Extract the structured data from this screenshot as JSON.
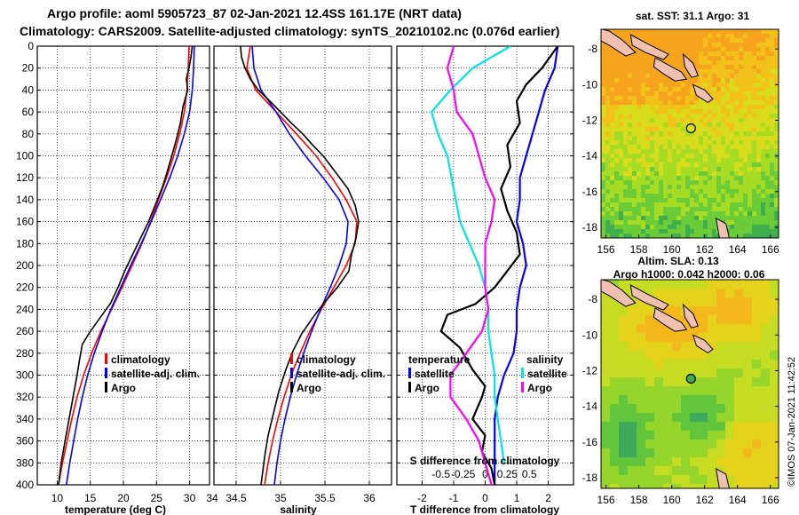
{
  "header": {
    "line1": "Argo profile: aoml 5905723_87 02-Jan-2021 12.4SS 161.17E (NRT data)",
    "line2": "Climatology: CARS2009. Satellite-adjusted climatology: synTS_20210102.nc (0.076d earlier)"
  },
  "watermark": "©IMOS 07-Jan-2021 11:42:52",
  "colors": {
    "climatology": "#ff0000",
    "satellite": "#0000ff",
    "argo": "#000000",
    "t_satellite": "#0000ff",
    "t_argo": "#000000",
    "s_satellite": "#00e5e5",
    "s_argo": "#ff00ff"
  },
  "chart_data": [
    {
      "type": "line",
      "name": "temperature-profile",
      "xlabel": "temperature (deg C)",
      "ylabel": "",
      "xlim": [
        7,
        33
      ],
      "ylim": [
        400,
        0
      ],
      "xticks": [
        10,
        15,
        20,
        25,
        30
      ],
      "yticks": [
        0,
        20,
        40,
        60,
        80,
        100,
        120,
        140,
        160,
        180,
        200,
        220,
        240,
        260,
        280,
        300,
        320,
        340,
        360,
        380,
        400
      ],
      "legend": [
        "climatology",
        "satellite-adj. clim.",
        "Argo"
      ],
      "series": [
        {
          "name": "climatology",
          "color": "#ff0000",
          "points": [
            [
              29.9,
              0
            ],
            [
              29.8,
              20
            ],
            [
              29.6,
              40
            ],
            [
              29.2,
              60
            ],
            [
              28.5,
              80
            ],
            [
              27.6,
              100
            ],
            [
              26.5,
              120
            ],
            [
              25.3,
              140
            ],
            [
              24.1,
              160
            ],
            [
              22.8,
              180
            ],
            [
              21.3,
              200
            ],
            [
              19.8,
              220
            ],
            [
              18.2,
              240
            ],
            [
              16.6,
              260
            ],
            [
              15.2,
              280
            ],
            [
              14.0,
              300
            ],
            [
              13.0,
              320
            ],
            [
              12.2,
              340
            ],
            [
              11.5,
              360
            ],
            [
              10.8,
              380
            ],
            [
              10.2,
              400
            ]
          ]
        },
        {
          "name": "satellite-adj. clim.",
          "color": "#0000ff",
          "points": [
            [
              30.7,
              0
            ],
            [
              30.6,
              20
            ],
            [
              30.4,
              40
            ],
            [
              30.0,
              60
            ],
            [
              29.2,
              80
            ],
            [
              28.2,
              100
            ],
            [
              27.0,
              120
            ],
            [
              25.6,
              140
            ],
            [
              24.2,
              160
            ],
            [
              22.7,
              180
            ],
            [
              21.1,
              200
            ],
            [
              19.6,
              220
            ],
            [
              18.1,
              240
            ],
            [
              16.8,
              260
            ],
            [
              15.6,
              280
            ],
            [
              14.6,
              300
            ],
            [
              13.8,
              320
            ],
            [
              13.1,
              340
            ],
            [
              12.5,
              360
            ],
            [
              11.9,
              380
            ],
            [
              11.4,
              400
            ]
          ]
        },
        {
          "name": "Argo",
          "color": "#000000",
          "points": [
            [
              30.4,
              0
            ],
            [
              30.2,
              10
            ],
            [
              29.9,
              20
            ],
            [
              29.5,
              30
            ],
            [
              29.7,
              40
            ],
            [
              29.0,
              55
            ],
            [
              28.6,
              70
            ],
            [
              28.0,
              85
            ],
            [
              27.3,
              100
            ],
            [
              26.6,
              115
            ],
            [
              25.8,
              130
            ],
            [
              24.8,
              145
            ],
            [
              23.8,
              160
            ],
            [
              22.6,
              175
            ],
            [
              21.4,
              190
            ],
            [
              20.2,
              205
            ],
            [
              19.2,
              220
            ],
            [
              18.0,
              235
            ],
            [
              16.2,
              250
            ],
            [
              14.8,
              262
            ],
            [
              13.8,
              272
            ],
            [
              13.4,
              285
            ],
            [
              13.0,
              300
            ],
            [
              12.4,
              320
            ],
            [
              11.8,
              340
            ],
            [
              11.2,
              360
            ],
            [
              10.6,
              380
            ],
            [
              10.2,
              400
            ]
          ]
        }
      ]
    },
    {
      "type": "line",
      "name": "salinity-profile",
      "xlabel": "salinity",
      "xlim": [
        34.25,
        36.25
      ],
      "ylim": [
        400,
        0
      ],
      "xticks": [
        34.5,
        35,
        35.5,
        36
      ],
      "extra_left_tick": "34",
      "legend": [
        "climatology",
        "satellite-adj. clim.",
        "Argo"
      ],
      "series": [
        {
          "name": "climatology",
          "color": "#ff0000",
          "points": [
            [
              34.66,
              0
            ],
            [
              34.62,
              20
            ],
            [
              34.72,
              40
            ],
            [
              34.95,
              60
            ],
            [
              35.18,
              80
            ],
            [
              35.4,
              100
            ],
            [
              35.58,
              120
            ],
            [
              35.74,
              140
            ],
            [
              35.86,
              160
            ],
            [
              35.84,
              180
            ],
            [
              35.74,
              200
            ],
            [
              35.6,
              220
            ],
            [
              35.46,
              240
            ],
            [
              35.33,
              260
            ],
            [
              35.22,
              280
            ],
            [
              35.12,
              300
            ],
            [
              35.04,
              320
            ],
            [
              34.97,
              340
            ],
            [
              34.91,
              360
            ],
            [
              34.86,
              380
            ],
            [
              34.82,
              400
            ]
          ]
        },
        {
          "name": "satellite-adj. clim.",
          "color": "#0000ff",
          "points": [
            [
              34.68,
              0
            ],
            [
              34.7,
              20
            ],
            [
              34.78,
              40
            ],
            [
              34.95,
              60
            ],
            [
              35.1,
              80
            ],
            [
              35.28,
              100
            ],
            [
              35.48,
              120
            ],
            [
              35.66,
              140
            ],
            [
              35.76,
              160
            ],
            [
              35.74,
              180
            ],
            [
              35.66,
              200
            ],
            [
              35.56,
              220
            ],
            [
              35.45,
              240
            ],
            [
              35.35,
              260
            ],
            [
              35.26,
              280
            ],
            [
              35.18,
              300
            ],
            [
              35.11,
              320
            ],
            [
              35.05,
              340
            ],
            [
              35.0,
              360
            ],
            [
              34.96,
              380
            ],
            [
              34.93,
              400
            ]
          ]
        },
        {
          "name": "Argo",
          "color": "#000000",
          "points": [
            [
              34.55,
              0
            ],
            [
              34.56,
              10
            ],
            [
              34.6,
              20
            ],
            [
              34.66,
              30
            ],
            [
              34.75,
              40
            ],
            [
              34.88,
              50
            ],
            [
              35.0,
              60
            ],
            [
              35.12,
              70
            ],
            [
              35.25,
              80
            ],
            [
              35.36,
              90
            ],
            [
              35.48,
              100
            ],
            [
              35.62,
              115
            ],
            [
              35.76,
              130
            ],
            [
              35.84,
              145
            ],
            [
              35.88,
              160
            ],
            [
              35.85,
              175
            ],
            [
              35.8,
              190
            ],
            [
              35.77,
              205
            ],
            [
              35.64,
              220
            ],
            [
              35.48,
              235
            ],
            [
              35.36,
              248
            ],
            [
              35.24,
              262
            ],
            [
              35.14,
              278
            ],
            [
              35.06,
              295
            ],
            [
              34.98,
              315
            ],
            [
              34.92,
              335
            ],
            [
              34.86,
              355
            ],
            [
              34.82,
              375
            ],
            [
              34.78,
              400
            ]
          ]
        }
      ]
    },
    {
      "type": "line",
      "name": "difference-profile",
      "xlabel": "T difference from climatology",
      "top_xlabel": "S difference from climatology",
      "xlim": [
        -2.8,
        2.8
      ],
      "ylim": [
        400,
        0
      ],
      "xticks": [
        -2,
        -1,
        0,
        1,
        2
      ],
      "top_xticks": [
        "-0.5",
        "-0.25",
        "0",
        "0.25",
        "0.5"
      ],
      "legend_temperature_title": "temperature",
      "legend_salinity_title": "salinity",
      "legend_temperature": [
        "satellite",
        "Argo"
      ],
      "legend_salinity": [
        "satellite",
        "Argo"
      ],
      "series": [
        {
          "name": "T satellite",
          "color": "#0000ff",
          "points": [
            [
              2.3,
              0
            ],
            [
              2.2,
              20
            ],
            [
              1.9,
              40
            ],
            [
              1.7,
              60
            ],
            [
              1.5,
              80
            ],
            [
              1.3,
              100
            ],
            [
              1.1,
              120
            ],
            [
              1.1,
              140
            ],
            [
              1.0,
              160
            ],
            [
              1.2,
              180
            ],
            [
              1.3,
              200
            ],
            [
              1.1,
              220
            ],
            [
              1.0,
              240
            ],
            [
              1.0,
              260
            ],
            [
              0.9,
              280
            ],
            [
              0.6,
              300
            ],
            [
              0.4,
              320
            ],
            [
              0.3,
              340
            ],
            [
              0.3,
              360
            ],
            [
              0.3,
              380
            ],
            [
              0.3,
              400
            ]
          ]
        },
        {
          "name": "T Argo",
          "color": "#000000",
          "points": [
            [
              2.3,
              0
            ],
            [
              1.8,
              20
            ],
            [
              1.3,
              35
            ],
            [
              1.0,
              50
            ],
            [
              1.1,
              70
            ],
            [
              0.7,
              90
            ],
            [
              0.8,
              110
            ],
            [
              0.5,
              130
            ],
            [
              0.7,
              150
            ],
            [
              1.0,
              170
            ],
            [
              1.1,
              190
            ],
            [
              0.7,
              205
            ],
            [
              0.3,
              220
            ],
            [
              -0.3,
              235
            ],
            [
              -1.2,
              245
            ],
            [
              -1.4,
              260
            ],
            [
              -0.8,
              275
            ],
            [
              -0.4,
              295
            ],
            [
              0.0,
              310
            ],
            [
              -0.1,
              320
            ],
            [
              -0.4,
              340
            ],
            [
              0.0,
              355
            ],
            [
              -0.1,
              370
            ],
            [
              0.2,
              385
            ],
            [
              0.3,
              400
            ]
          ]
        },
        {
          "name": "S satellite",
          "color": "#00e5e5",
          "points": [
            [
              0.8,
              0
            ],
            [
              -0.4,
              20
            ],
            [
              -1.1,
              40
            ],
            [
              -1.7,
              60
            ],
            [
              -1.5,
              80
            ],
            [
              -1.2,
              100
            ],
            [
              -1.0,
              130
            ],
            [
              -0.8,
              160
            ],
            [
              -0.5,
              180
            ],
            [
              -0.2,
              200
            ],
            [
              0.0,
              220
            ],
            [
              0.1,
              240
            ],
            [
              0.1,
              260
            ],
            [
              0.2,
              280
            ],
            [
              0.3,
              300
            ],
            [
              0.3,
              320
            ],
            [
              0.4,
              340
            ],
            [
              0.5,
              360
            ],
            [
              0.6,
              380
            ]
          ]
        },
        {
          "name": "S Argo",
          "color": "#ff00ff",
          "points": [
            [
              -1.0,
              0
            ],
            [
              -1.2,
              20
            ],
            [
              -1.0,
              40
            ],
            [
              -0.9,
              60
            ],
            [
              -0.4,
              80
            ],
            [
              -0.2,
              100
            ],
            [
              0.0,
              120
            ],
            [
              0.3,
              140
            ],
            [
              0.2,
              160
            ],
            [
              0.0,
              180
            ],
            [
              0.0,
              200
            ],
            [
              0.0,
              220
            ],
            [
              0.1,
              240
            ],
            [
              -0.1,
              260
            ],
            [
              -0.6,
              280
            ],
            [
              -1.1,
              300
            ],
            [
              -1.1,
              320
            ],
            [
              -0.6,
              340
            ],
            [
              -0.2,
              360
            ],
            [
              0.0,
              380
            ],
            [
              0.2,
              400
            ]
          ]
        }
      ]
    },
    {
      "type": "heatmap",
      "name": "sst-map",
      "title": "sat. SST: 31.1 Argo: 31",
      "xticks": [
        156,
        158,
        160,
        162,
        164,
        166
      ],
      "yticks": [
        -8,
        -10,
        -12,
        -14,
        -16,
        -18
      ],
      "xlim": [
        155.7,
        166.5
      ],
      "ylim": [
        -18.6,
        -6.9
      ],
      "argo_position": [
        161.17,
        -12.45
      ]
    },
    {
      "type": "heatmap",
      "name": "sla-map",
      "title": "Altim. SLA: 0.13",
      "subtitle": "Argo h1000: 0.042 h2000: 0.06",
      "xticks": [
        156,
        158,
        160,
        162,
        164,
        166
      ],
      "yticks": [
        -8,
        -10,
        -12,
        -14,
        -16,
        -18
      ],
      "xlim": [
        155.7,
        166.5
      ],
      "ylim": [
        -18.6,
        -6.9
      ],
      "argo_position": [
        161.17,
        -12.45
      ]
    }
  ]
}
